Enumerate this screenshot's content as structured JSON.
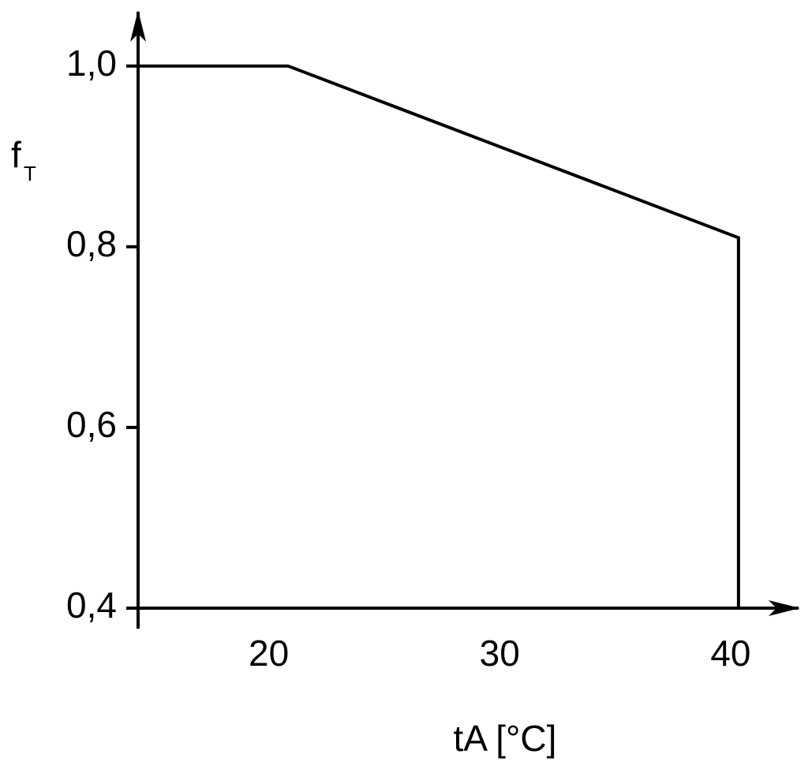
{
  "chart_data": {
    "type": "line",
    "ylabel": "f",
    "ylabel_subscript": "T",
    "xlabel": "tA [°C]",
    "x": [
      14,
      20.5,
      40,
      40
    ],
    "values": [
      1.0,
      1.0,
      0.81,
      0.4
    ],
    "color": "#000000",
    "xlim": [
      14,
      42.6
    ],
    "xticks": [
      20,
      30,
      40
    ],
    "ylim": [
      0.4,
      1.06
    ],
    "yticks": [
      {
        "value": 0.4,
        "label": "0,4"
      },
      {
        "value": 0.6,
        "label": "0,6"
      },
      {
        "value": 0.8,
        "label": "0,8"
      },
      {
        "value": 1.0,
        "label": "1,0"
      }
    ],
    "grid": false
  }
}
